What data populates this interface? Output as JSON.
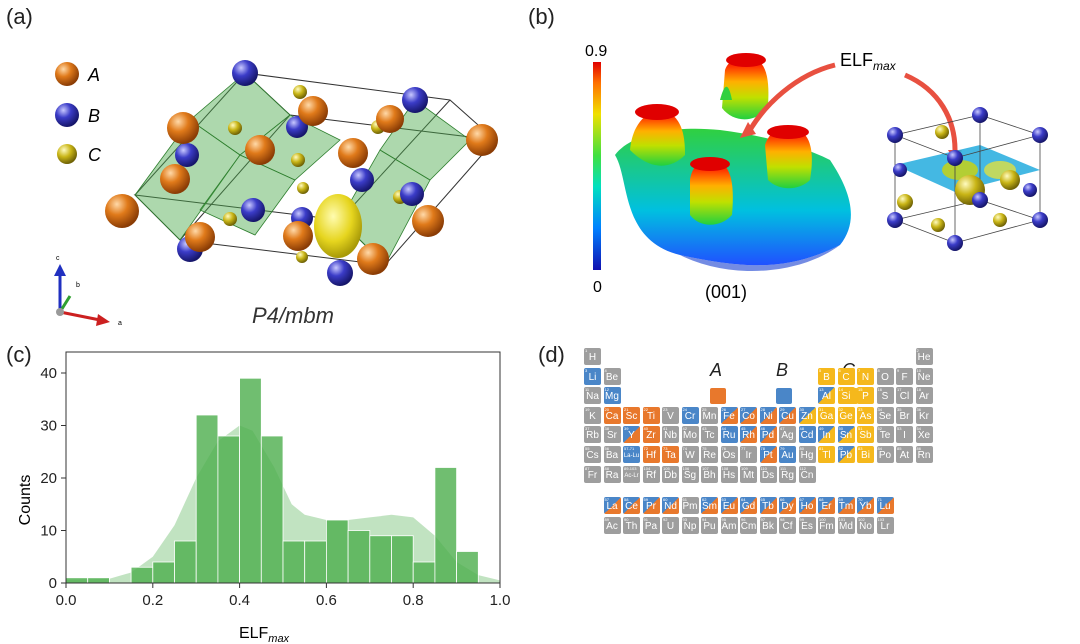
{
  "panels": {
    "a": {
      "label": "(a)",
      "legend": [
        {
          "key": "A",
          "color": "#d96d14"
        },
        {
          "key": "B",
          "color": "#3a3ec0"
        },
        {
          "key": "C",
          "color": "#c8b51a"
        }
      ],
      "space_group": "P4/mbm",
      "axes": {
        "c": "c",
        "b": "b",
        "a": "a"
      }
    },
    "b": {
      "label": "(b)",
      "colorbar_max": "0.9",
      "colorbar_min": "0",
      "plane": "(001)",
      "annotation": "ELF",
      "annotation_sub": "max"
    },
    "c": {
      "label": "(c)",
      "ylabel": "Counts",
      "xlabel": "ELF",
      "xlabel_sub": "max",
      "xticks": [
        "0.0",
        "0.2",
        "0.4",
        "0.6",
        "0.8",
        "1.0"
      ],
      "yticks": [
        "0",
        "10",
        "20",
        "30",
        "40"
      ]
    },
    "d": {
      "label": "(d)",
      "legend": [
        {
          "key": "A",
          "color": "#e8782c"
        },
        {
          "key": "B",
          "color": "#4a86c8"
        },
        {
          "key": "C",
          "color": "#f5b81c"
        }
      ]
    }
  },
  "chart_data": {
    "type": "bar",
    "xlabel": "ELFmax",
    "ylabel": "Counts",
    "xlim": [
      0.0,
      1.0
    ],
    "ylim": [
      0,
      44
    ],
    "bin_width": 0.05,
    "bin_starts": [
      0.0,
      0.05,
      0.1,
      0.15,
      0.2,
      0.25,
      0.3,
      0.35,
      0.4,
      0.45,
      0.5,
      0.55,
      0.6,
      0.65,
      0.7,
      0.75,
      0.8,
      0.85,
      0.9,
      0.95
    ],
    "values": [
      1,
      1,
      0,
      3,
      4,
      8,
      32,
      28,
      39,
      28,
      8,
      8,
      12,
      10,
      9,
      9,
      4,
      22,
      6,
      0
    ],
    "kde": [
      [
        0.0,
        0.6
      ],
      [
        0.1,
        0.8
      ],
      [
        0.15,
        2
      ],
      [
        0.2,
        5
      ],
      [
        0.25,
        11
      ],
      [
        0.3,
        20
      ],
      [
        0.35,
        27
      ],
      [
        0.4,
        30
      ],
      [
        0.43,
        29
      ],
      [
        0.48,
        22
      ],
      [
        0.52,
        15
      ],
      [
        0.55,
        13
      ],
      [
        0.6,
        12
      ],
      [
        0.65,
        12
      ],
      [
        0.7,
        12.5
      ],
      [
        0.75,
        13
      ],
      [
        0.8,
        12.5
      ],
      [
        0.85,
        9
      ],
      [
        0.9,
        4
      ],
      [
        0.95,
        1.5
      ],
      [
        1.0,
        0.5
      ]
    ],
    "color": "#4cae4c"
  },
  "periodic_table": {
    "colors": {
      "A": "#e8782c",
      "B": "#4a86c8",
      "C": "#f5b81c",
      "none": "#9e9e9e"
    },
    "elements": [
      {
        "z": "1",
        "s": "H",
        "r": 1,
        "c": 1,
        "t": "none"
      },
      {
        "z": "2",
        "s": "He",
        "r": 1,
        "c": 18,
        "t": "none"
      },
      {
        "z": "3",
        "s": "Li",
        "r": 2,
        "c": 1,
        "t": "B"
      },
      {
        "z": "4",
        "s": "Be",
        "r": 2,
        "c": 2,
        "t": "none"
      },
      {
        "z": "5",
        "s": "B",
        "r": 2,
        "c": 13,
        "t": "C"
      },
      {
        "z": "6",
        "s": "C",
        "r": 2,
        "c": 14,
        "t": "C"
      },
      {
        "z": "7",
        "s": "N",
        "r": 2,
        "c": 15,
        "t": "C"
      },
      {
        "z": "8",
        "s": "O",
        "r": 2,
        "c": 16,
        "t": "none"
      },
      {
        "z": "9",
        "s": "F",
        "r": 2,
        "c": 17,
        "t": "none"
      },
      {
        "z": "10",
        "s": "Ne",
        "r": 2,
        "c": 18,
        "t": "none"
      },
      {
        "z": "11",
        "s": "Na",
        "r": 3,
        "c": 1,
        "t": "none"
      },
      {
        "z": "12",
        "s": "Mg",
        "r": 3,
        "c": 2,
        "t": "B"
      },
      {
        "z": "13",
        "s": "Al",
        "r": 3,
        "c": 13,
        "t": "BC"
      },
      {
        "z": "14",
        "s": "Si",
        "r": 3,
        "c": 14,
        "t": "C"
      },
      {
        "z": "15",
        "s": "P",
        "r": 3,
        "c": 15,
        "t": "C"
      },
      {
        "z": "16",
        "s": "S",
        "r": 3,
        "c": 16,
        "t": "none"
      },
      {
        "z": "17",
        "s": "Cl",
        "r": 3,
        "c": 17,
        "t": "none"
      },
      {
        "z": "18",
        "s": "Ar",
        "r": 3,
        "c": 18,
        "t": "none"
      },
      {
        "z": "19",
        "s": "K",
        "r": 4,
        "c": 1,
        "t": "none"
      },
      {
        "z": "20",
        "s": "Ca",
        "r": 4,
        "c": 2,
        "t": "A"
      },
      {
        "z": "21",
        "s": "Sc",
        "r": 4,
        "c": 3,
        "t": "A"
      },
      {
        "z": "22",
        "s": "Ti",
        "r": 4,
        "c": 4,
        "t": "A"
      },
      {
        "z": "23",
        "s": "V",
        "r": 4,
        "c": 5,
        "t": "none"
      },
      {
        "z": "24",
        "s": "Cr",
        "r": 4,
        "c": 6,
        "t": "B"
      },
      {
        "z": "25",
        "s": "Mn",
        "r": 4,
        "c": 7,
        "t": "none"
      },
      {
        "z": "26",
        "s": "Fe",
        "r": 4,
        "c": 8,
        "t": "BA"
      },
      {
        "z": "27",
        "s": "Co",
        "r": 4,
        "c": 9,
        "t": "BA"
      },
      {
        "z": "28",
        "s": "Ni",
        "r": 4,
        "c": 10,
        "t": "BA"
      },
      {
        "z": "29",
        "s": "Cu",
        "r": 4,
        "c": 11,
        "t": "BA"
      },
      {
        "z": "30",
        "s": "Zn",
        "r": 4,
        "c": 12,
        "t": "BC"
      },
      {
        "z": "31",
        "s": "Ga",
        "r": 4,
        "c": 13,
        "t": "C"
      },
      {
        "z": "32",
        "s": "Ge",
        "r": 4,
        "c": 14,
        "t": "C"
      },
      {
        "z": "33",
        "s": "As",
        "r": 4,
        "c": 15,
        "t": "C"
      },
      {
        "z": "34",
        "s": "Se",
        "r": 4,
        "c": 16,
        "t": "none"
      },
      {
        "z": "35",
        "s": "Br",
        "r": 4,
        "c": 17,
        "t": "none"
      },
      {
        "z": "36",
        "s": "Kr",
        "r": 4,
        "c": 18,
        "t": "none"
      },
      {
        "z": "37",
        "s": "Rb",
        "r": 5,
        "c": 1,
        "t": "none"
      },
      {
        "z": "38",
        "s": "Sr",
        "r": 5,
        "c": 2,
        "t": "none"
      },
      {
        "z": "39",
        "s": "Y",
        "r": 5,
        "c": 3,
        "t": "BA"
      },
      {
        "z": "40",
        "s": "Zr",
        "r": 5,
        "c": 4,
        "t": "A"
      },
      {
        "z": "41",
        "s": "Nb",
        "r": 5,
        "c": 5,
        "t": "none"
      },
      {
        "z": "42",
        "s": "Mo",
        "r": 5,
        "c": 6,
        "t": "none"
      },
      {
        "z": "43",
        "s": "Tc",
        "r": 5,
        "c": 7,
        "t": "none"
      },
      {
        "z": "44",
        "s": "Ru",
        "r": 5,
        "c": 8,
        "t": "B"
      },
      {
        "z": "45",
        "s": "Rh",
        "r": 5,
        "c": 9,
        "t": "BA"
      },
      {
        "z": "46",
        "s": "Pd",
        "r": 5,
        "c": 10,
        "t": "BA"
      },
      {
        "z": "47",
        "s": "Ag",
        "r": 5,
        "c": 11,
        "t": "none"
      },
      {
        "z": "48",
        "s": "Cd",
        "r": 5,
        "c": 12,
        "t": "B"
      },
      {
        "z": "49",
        "s": "In",
        "r": 5,
        "c": 13,
        "t": "BC"
      },
      {
        "z": "50",
        "s": "Sn",
        "r": 5,
        "c": 14,
        "t": "BC"
      },
      {
        "z": "51",
        "s": "Sb",
        "r": 5,
        "c": 15,
        "t": "C"
      },
      {
        "z": "52",
        "s": "Te",
        "r": 5,
        "c": 16,
        "t": "none"
      },
      {
        "z": "53",
        "s": "I",
        "r": 5,
        "c": 17,
        "t": "none"
      },
      {
        "z": "54",
        "s": "Xe",
        "r": 5,
        "c": 18,
        "t": "none"
      },
      {
        "z": "55",
        "s": "Cs",
        "r": 6,
        "c": 1,
        "t": "none"
      },
      {
        "z": "56",
        "s": "Ba",
        "r": 6,
        "c": 2,
        "t": "none"
      },
      {
        "z": "57-71",
        "s": "La-Lu",
        "r": 6,
        "c": 3,
        "t": "B"
      },
      {
        "z": "72",
        "s": "Hf",
        "r": 6,
        "c": 4,
        "t": "A"
      },
      {
        "z": "73",
        "s": "Ta",
        "r": 6,
        "c": 5,
        "t": "A"
      },
      {
        "z": "74",
        "s": "W",
        "r": 6,
        "c": 6,
        "t": "none"
      },
      {
        "z": "75",
        "s": "Re",
        "r": 6,
        "c": 7,
        "t": "none"
      },
      {
        "z": "76",
        "s": "Os",
        "r": 6,
        "c": 8,
        "t": "none"
      },
      {
        "z": "77",
        "s": "Ir",
        "r": 6,
        "c": 9,
        "t": "none"
      },
      {
        "z": "78",
        "s": "Pt",
        "r": 6,
        "c": 10,
        "t": "BA"
      },
      {
        "z": "79",
        "s": "Au",
        "r": 6,
        "c": 11,
        "t": "B"
      },
      {
        "z": "80",
        "s": "Hg",
        "r": 6,
        "c": 12,
        "t": "none"
      },
      {
        "z": "81",
        "s": "Tl",
        "r": 6,
        "c": 13,
        "t": "C"
      },
      {
        "z": "82",
        "s": "Pb",
        "r": 6,
        "c": 14,
        "t": "BC"
      },
      {
        "z": "83",
        "s": "Bi",
        "r": 6,
        "c": 15,
        "t": "C"
      },
      {
        "z": "84",
        "s": "Po",
        "r": 6,
        "c": 16,
        "t": "none"
      },
      {
        "z": "85",
        "s": "At",
        "r": 6,
        "c": 17,
        "t": "none"
      },
      {
        "z": "86",
        "s": "Rn",
        "r": 6,
        "c": 18,
        "t": "none"
      },
      {
        "z": "87",
        "s": "Fr",
        "r": 7,
        "c": 1,
        "t": "none"
      },
      {
        "z": "88",
        "s": "Ra",
        "r": 7,
        "c": 2,
        "t": "none"
      },
      {
        "z": "89-103",
        "s": "Ac-Lr",
        "r": 7,
        "c": 3,
        "t": "none"
      },
      {
        "z": "104",
        "s": "Rf",
        "r": 7,
        "c": 4,
        "t": "none"
      },
      {
        "z": "105",
        "s": "Db",
        "r": 7,
        "c": 5,
        "t": "none"
      },
      {
        "z": "106",
        "s": "Sg",
        "r": 7,
        "c": 6,
        "t": "none"
      },
      {
        "z": "107",
        "s": "Bh",
        "r": 7,
        "c": 7,
        "t": "none"
      },
      {
        "z": "108",
        "s": "Hs",
        "r": 7,
        "c": 8,
        "t": "none"
      },
      {
        "z": "109",
        "s": "Mt",
        "r": 7,
        "c": 9,
        "t": "none"
      },
      {
        "z": "110",
        "s": "Ds",
        "r": 7,
        "c": 10,
        "t": "none"
      },
      {
        "z": "111",
        "s": "Rg",
        "r": 7,
        "c": 11,
        "t": "none"
      },
      {
        "z": "112",
        "s": "Cn",
        "r": 7,
        "c": 12,
        "t": "none"
      },
      {
        "z": "57",
        "s": "La",
        "r": 9,
        "c": 2,
        "t": "BA"
      },
      {
        "z": "58",
        "s": "Ce",
        "r": 9,
        "c": 3,
        "t": "BA"
      },
      {
        "z": "59",
        "s": "Pr",
        "r": 9,
        "c": 4,
        "t": "BA"
      },
      {
        "z": "60",
        "s": "Nd",
        "r": 9,
        "c": 5,
        "t": "BA"
      },
      {
        "z": "61",
        "s": "Pm",
        "r": 9,
        "c": 6,
        "t": "none"
      },
      {
        "z": "62",
        "s": "Sm",
        "r": 9,
        "c": 7,
        "t": "BA"
      },
      {
        "z": "63",
        "s": "Eu",
        "r": 9,
        "c": 8,
        "t": "BA"
      },
      {
        "z": "64",
        "s": "Gd",
        "r": 9,
        "c": 9,
        "t": "BA"
      },
      {
        "z": "65",
        "s": "Tb",
        "r": 9,
        "c": 10,
        "t": "BA"
      },
      {
        "z": "66",
        "s": "Dy",
        "r": 9,
        "c": 11,
        "t": "BA"
      },
      {
        "z": "67",
        "s": "Ho",
        "r": 9,
        "c": 12,
        "t": "BA"
      },
      {
        "z": "68",
        "s": "Er",
        "r": 9,
        "c": 13,
        "t": "BA"
      },
      {
        "z": "69",
        "s": "Tm",
        "r": 9,
        "c": 14,
        "t": "BA"
      },
      {
        "z": "70",
        "s": "Yb",
        "r": 9,
        "c": 15,
        "t": "BA"
      },
      {
        "z": "71",
        "s": "Lu",
        "r": 9,
        "c": 16,
        "t": "BA"
      },
      {
        "z": "89",
        "s": "Ac",
        "r": 10,
        "c": 2,
        "t": "none"
      },
      {
        "z": "90",
        "s": "Th",
        "r": 10,
        "c": 3,
        "t": "none"
      },
      {
        "z": "91",
        "s": "Pa",
        "r": 10,
        "c": 4,
        "t": "none"
      },
      {
        "z": "92",
        "s": "U",
        "r": 10,
        "c": 5,
        "t": "none"
      },
      {
        "z": "93",
        "s": "Np",
        "r": 10,
        "c": 6,
        "t": "none"
      },
      {
        "z": "94",
        "s": "Pu",
        "r": 10,
        "c": 7,
        "t": "none"
      },
      {
        "z": "95",
        "s": "Am",
        "r": 10,
        "c": 8,
        "t": "none"
      },
      {
        "z": "96",
        "s": "Cm",
        "r": 10,
        "c": 9,
        "t": "none"
      },
      {
        "z": "97",
        "s": "Bk",
        "r": 10,
        "c": 10,
        "t": "none"
      },
      {
        "z": "98",
        "s": "Cf",
        "r": 10,
        "c": 11,
        "t": "none"
      },
      {
        "z": "99",
        "s": "Es",
        "r": 10,
        "c": 12,
        "t": "none"
      },
      {
        "z": "100",
        "s": "Fm",
        "r": 10,
        "c": 13,
        "t": "none"
      },
      {
        "z": "101",
        "s": "Md",
        "r": 10,
        "c": 14,
        "t": "none"
      },
      {
        "z": "102",
        "s": "No",
        "r": 10,
        "c": 15,
        "t": "none"
      },
      {
        "z": "103",
        "s": "Lr",
        "r": 10,
        "c": 16,
        "t": "none"
      }
    ]
  }
}
